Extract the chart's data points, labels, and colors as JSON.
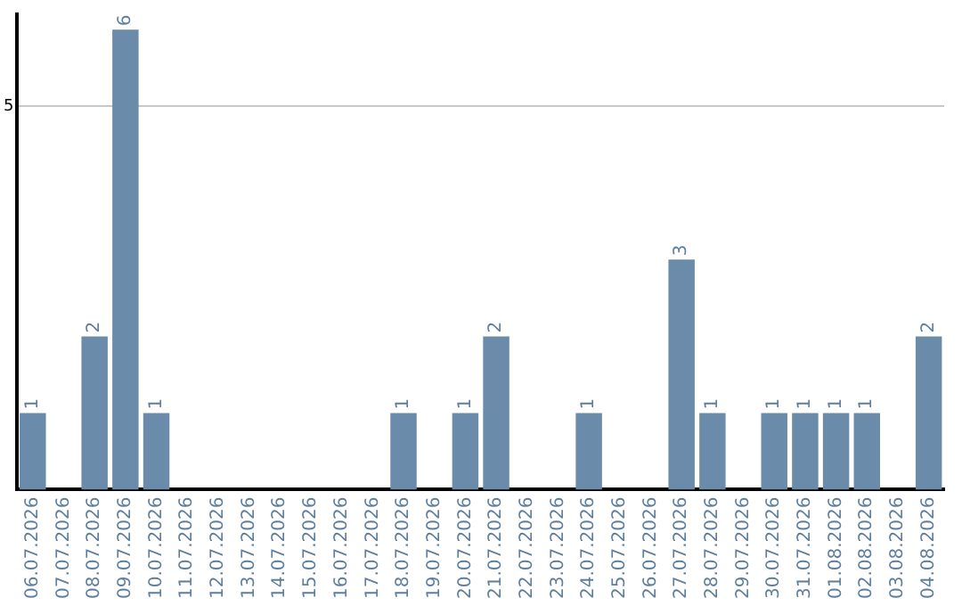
{
  "chart_data": {
    "type": "bar",
    "categories": [
      "06.07.2026",
      "07.07.2026",
      "08.07.2026",
      "09.07.2026",
      "10.07.2026",
      "11.07.2026",
      "12.07.2026",
      "13.07.2026",
      "14.07.2026",
      "15.07.2026",
      "16.07.2026",
      "17.07.2026",
      "18.07.2026",
      "19.07.2026",
      "20.07.2026",
      "21.07.2026",
      "22.07.2026",
      "23.07.2026",
      "24.07.2026",
      "25.07.2026",
      "26.07.2026",
      "27.07.2026",
      "28.07.2026",
      "29.07.2026",
      "30.07.2026",
      "31.07.2026",
      "01.08.2026",
      "02.08.2026",
      "03.08.2026",
      "04.08.2026"
    ],
    "values": [
      1,
      0,
      2,
      6,
      1,
      0,
      0,
      0,
      0,
      0,
      0,
      0,
      1,
      0,
      1,
      2,
      0,
      0,
      1,
      0,
      0,
      3,
      1,
      0,
      1,
      1,
      1,
      1,
      0,
      2
    ],
    "value_labels": [
      "1",
      null,
      "2",
      "6",
      "1",
      null,
      null,
      null,
      null,
      null,
      null,
      null,
      "1",
      null,
      "1",
      "2",
      null,
      null,
      "1",
      null,
      null,
      "3",
      "1",
      null,
      "1",
      "1",
      "1",
      "1",
      null,
      "2"
    ],
    "color": "#6a8caa",
    "ylim": [
      0,
      6.2
    ],
    "yticks": [
      5
    ],
    "grid": "y",
    "legend": false
  }
}
